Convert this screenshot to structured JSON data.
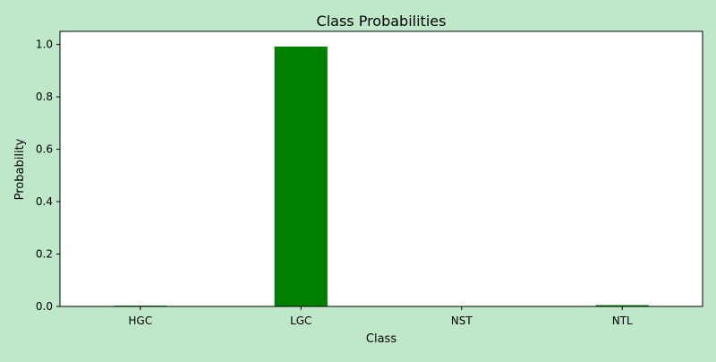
{
  "chart_data": {
    "type": "bar",
    "title": "Class Probabilities",
    "xlabel": "Class",
    "ylabel": "Probability",
    "categories": [
      "HGC",
      "LGC",
      "NST",
      "NTL"
    ],
    "values": [
      0.003,
      0.992,
      0.0005,
      0.005
    ],
    "ylim": [
      0,
      1.05
    ],
    "yticks": [
      "0.0",
      "0.2",
      "0.4",
      "0.6",
      "0.8",
      "1.0"
    ],
    "grid": false,
    "bar_color": "#008000",
    "figure_background": "#bfe8cb",
    "plot_background": "#ffffff"
  }
}
